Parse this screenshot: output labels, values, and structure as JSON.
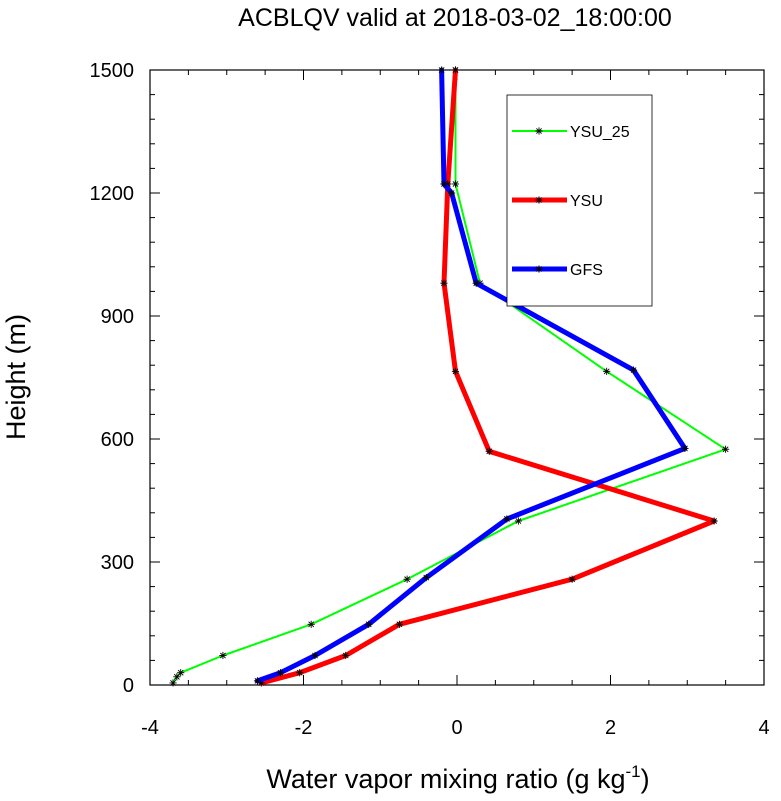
{
  "chart_data": {
    "type": "line",
    "title": "ACBLQV valid at 2018-03-02_18:00:00",
    "xlabel": "Water vapor mixing ratio (g kg",
    "xlabel_superscript": "-1",
    "xlabel_suffix": ")",
    "ylabel": "Height (m)",
    "xlim": [
      -4,
      4
    ],
    "ylim": [
      0,
      1500
    ],
    "x_ticks": [
      -4,
      -2,
      0,
      2,
      4
    ],
    "x_tick_labels": [
      "-4",
      "-2",
      "0",
      "2",
      "4"
    ],
    "y_ticks": [
      0,
      300,
      600,
      900,
      1200,
      1500
    ],
    "y_tick_labels": [
      "0",
      "300",
      "600",
      "900",
      "1200",
      "1500"
    ],
    "legend_position": "top-right",
    "marker": "asterisk",
    "series": [
      {
        "name": "YSU_25",
        "color": "#00ff00",
        "line_width": "thin",
        "points": [
          {
            "x": -3.7,
            "y": 5
          },
          {
            "x": -3.65,
            "y": 20
          },
          {
            "x": -3.6,
            "y": 30
          },
          {
            "x": -3.05,
            "y": 72
          },
          {
            "x": -1.9,
            "y": 148
          },
          {
            "x": -0.65,
            "y": 258
          },
          {
            "x": 0.8,
            "y": 400
          },
          {
            "x": 3.5,
            "y": 575
          },
          {
            "x": 1.95,
            "y": 765
          },
          {
            "x": 0.3,
            "y": 980
          },
          {
            "x": -0.02,
            "y": 1222
          },
          {
            "x": -0.02,
            "y": 1500
          }
        ]
      },
      {
        "name": "YSU",
        "color": "#ff0000",
        "line_width": "thick",
        "points": [
          {
            "x": -2.55,
            "y": 5
          },
          {
            "x": -2.05,
            "y": 30
          },
          {
            "x": -1.45,
            "y": 72
          },
          {
            "x": -0.75,
            "y": 148
          },
          {
            "x": 1.5,
            "y": 258
          },
          {
            "x": 3.35,
            "y": 400
          },
          {
            "x": 0.42,
            "y": 570
          },
          {
            "x": -0.02,
            "y": 765
          },
          {
            "x": -0.17,
            "y": 980
          },
          {
            "x": -0.12,
            "y": 1222
          },
          {
            "x": -0.02,
            "y": 1500
          }
        ]
      },
      {
        "name": "GFS",
        "color": "#0000ff",
        "line_width": "thick",
        "points": [
          {
            "x": -2.6,
            "y": 10
          },
          {
            "x": -2.3,
            "y": 30
          },
          {
            "x": -1.85,
            "y": 72
          },
          {
            "x": -1.15,
            "y": 148
          },
          {
            "x": -0.4,
            "y": 262
          },
          {
            "x": 0.65,
            "y": 405
          },
          {
            "x": 2.97,
            "y": 577
          },
          {
            "x": 2.3,
            "y": 768
          },
          {
            "x": 0.25,
            "y": 980
          },
          {
            "x": -0.07,
            "y": 1200
          },
          {
            "x": -0.17,
            "y": 1222
          },
          {
            "x": -0.2,
            "y": 1500
          }
        ]
      }
    ]
  }
}
